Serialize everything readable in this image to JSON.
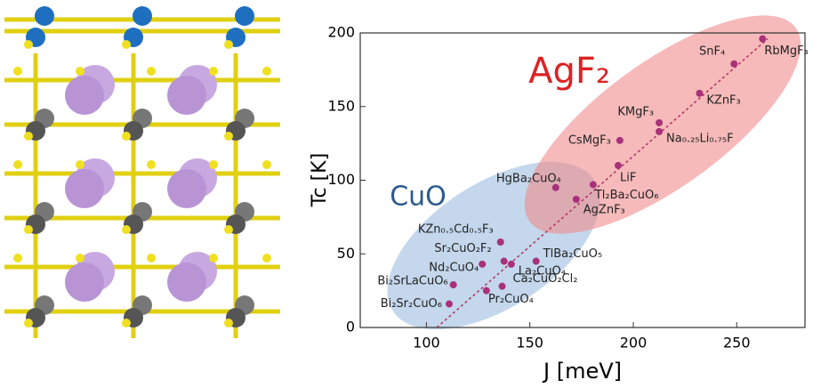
{
  "chart_data": {
    "type": "scatter",
    "x_label": "J [meV]",
    "y_label": "Tc [K]",
    "region_labels": [
      "CuO",
      "AgF₂"
    ],
    "xlim": [
      68,
      283
    ],
    "ylim": [
      0,
      200
    ],
    "xticks": [
      100,
      150,
      200,
      250
    ],
    "yticks": [
      0,
      50,
      100,
      150,
      200
    ],
    "color": "#a8327a",
    "labels": [
      "RbMgF₃",
      "SnF₄",
      "KZnF₃",
      "KMgF₃",
      "CsMgF₃",
      "Na₀.₂₅Li₀.₇₅F",
      "LiF",
      "Tl₂Ba₂CuO₆",
      "HgBa₂CuO₄",
      "AgZnF₃",
      "KZn₀.₅Cd₀.₅F₃",
      "Sr₂CuO₂F₂",
      "TlBa₂CuO₅",
      "Nd₂CuO₄",
      "La₂CuO₄",
      "Bi₂SrLaCuO₆",
      "Ca₂CuO₂Cl₂",
      "Pr₂CuO₄",
      "Bi₂Sr₂CuO₆"
    ],
    "x": [
      262.5,
      248.7,
      232,
      212.5,
      193.5,
      212.5,
      192.7,
      180.6,
      162.5,
      172.4,
      135.8,
      137.5,
      153,
      127,
      141,
      113,
      136.6,
      129,
      111
    ],
    "y": [
      196,
      179,
      159,
      139,
      127,
      133,
      110,
      97,
      95,
      87,
      58,
      45,
      45,
      43,
      43,
      29,
      28,
      25,
      16
    ],
    "trend_line": {
      "x": [
        105,
        265
      ],
      "y": [
        0,
        196
      ]
    }
  }
}
